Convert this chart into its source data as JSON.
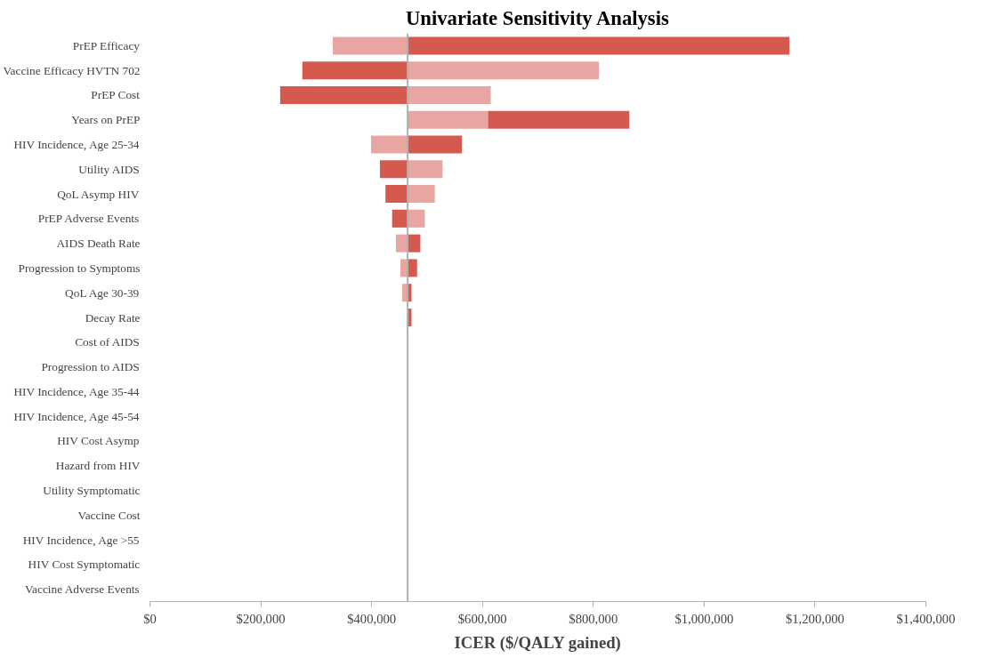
{
  "chart_data": {
    "type": "bar",
    "orientation": "horizontal",
    "title": "Univariate Sensitivity Analysis",
    "xlabel": "ICER ($/QALY gained)",
    "categories": [
      "PrEP Efficacy",
      "Vaccine Efficacy HVTN 702",
      "PrEP Cost",
      "Years on PrEP",
      "HIV Incidence, Age 25-34",
      "Utility AIDS",
      "QoL Asymp HIV",
      "PrEP Adverse Events",
      "AIDS Death Rate",
      "Progression to Symptoms",
      "QoL Age 30-39",
      "Decay Rate",
      "Cost of AIDS",
      "Progression to AIDS",
      "HIV Incidence, Age 35-44",
      "HIV Incidence, Age 45-54",
      "HIV Cost Asymp",
      "Hazard from HIV",
      "Utility Symptomatic",
      "Vaccine Cost",
      "HIV Incidence, Age >55",
      "HIV Cost Symptomatic",
      "Vaccine Adverse Events"
    ],
    "series": [
      {
        "color": "#e8a6a2",
        "base": [
          330000,
          465000,
          465000,
          465000,
          399000,
          465000,
          465000,
          465000,
          444000,
          452000,
          455000,
          null,
          null,
          null,
          null,
          null,
          null,
          null,
          null,
          null,
          null,
          null,
          null
        ],
        "values": [
          135000,
          345000,
          150000,
          145000,
          66000,
          63000,
          49000,
          31000,
          21000,
          13000,
          10000,
          null,
          null,
          null,
          null,
          null,
          null,
          null,
          null,
          null,
          null,
          null,
          null
        ]
      },
      {
        "color": "#d45a50",
        "base": [
          465000,
          275000,
          235000,
          610000,
          465000,
          415000,
          425000,
          437000,
          465000,
          465000,
          465000,
          465000,
          null,
          null,
          null,
          null,
          null,
          null,
          null,
          null,
          null,
          null,
          null
        ],
        "values": [
          689000,
          190000,
          230000,
          255000,
          98000,
          50000,
          40000,
          28000,
          23000,
          17000,
          7000,
          7000,
          null,
          null,
          null,
          null,
          null,
          null,
          null,
          null,
          null,
          null,
          null
        ]
      }
    ],
    "xlim": [
      0,
      1400000
    ],
    "xticks": [
      {
        "value": 0,
        "label": "$0"
      },
      {
        "value": 200000,
        "label": "$200,000"
      },
      {
        "value": 400000,
        "label": "$400,000"
      },
      {
        "value": 600000,
        "label": "$600,000"
      },
      {
        "value": 800000,
        "label": "$800,000"
      },
      {
        "value": 1000000,
        "label": "$1,000,000"
      },
      {
        "value": 1200000,
        "label": "$1,200,000"
      },
      {
        "value": 1400000,
        "label": "$1,400,000"
      }
    ],
    "ref_lines": [
      {
        "axis": "x",
        "value": 465000,
        "label": null,
        "color": "#b0b0b0"
      }
    ],
    "grid": false
  }
}
